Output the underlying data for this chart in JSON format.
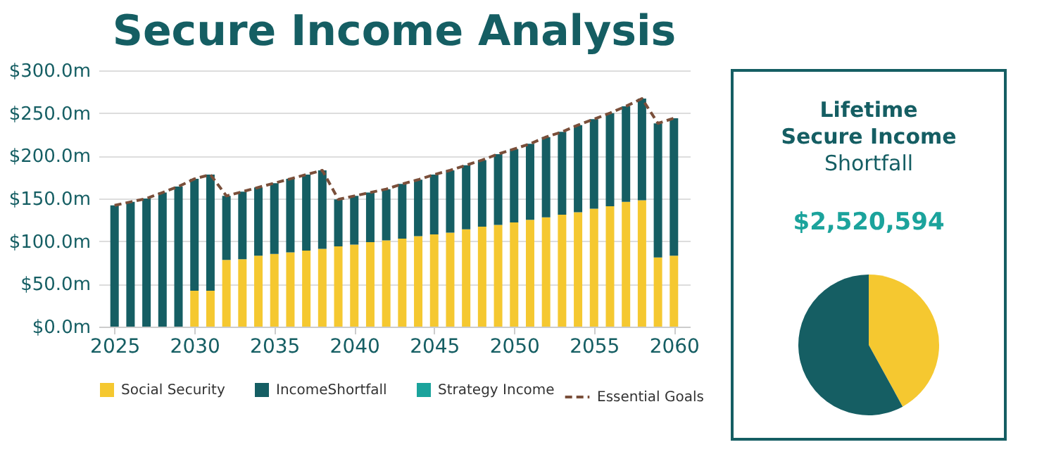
{
  "chart_data": [
    {
      "type": "bar",
      "title": "Secure Income Analysis",
      "stacked": true,
      "x": [
        2025,
        2026,
        2027,
        2028,
        2029,
        2030,
        2031,
        2032,
        2033,
        2034,
        2035,
        2036,
        2037,
        2038,
        2039,
        2040,
        2041,
        2042,
        2043,
        2044,
        2045,
        2046,
        2047,
        2048,
        2049,
        2050,
        2051,
        2052,
        2053,
        2054,
        2055,
        2056,
        2057,
        2058,
        2059,
        2060
      ],
      "series": [
        {
          "name": "Social Security",
          "color": "#f5c830",
          "values": [
            0,
            0,
            0,
            0,
            0,
            42,
            42,
            78,
            79,
            83,
            85,
            87,
            89,
            91,
            94,
            96,
            99,
            101,
            103,
            106,
            108,
            110,
            114,
            117,
            119,
            122,
            125,
            128,
            131,
            134,
            138,
            141,
            146,
            148,
            81,
            83
          ]
        },
        {
          "name": "IncomeShortfall",
          "color": "#155e63",
          "values": [
            142,
            146,
            150,
            157,
            164,
            131,
            136,
            75,
            79,
            80,
            83,
            86,
            89,
            92,
            55,
            57,
            58,
            60,
            64,
            66,
            70,
            73,
            75,
            78,
            83,
            86,
            89,
            94,
            97,
            102,
            105,
            109,
            112,
            119,
            157,
            161
          ]
        },
        {
          "name": "Strategy Income",
          "color": "#1ba39c",
          "values": [
            0,
            0,
            0,
            0,
            0,
            0,
            0,
            0,
            0,
            0,
            0,
            0,
            0,
            0,
            0,
            0,
            0,
            0,
            0,
            0,
            0,
            0,
            0,
            0,
            0,
            0,
            0,
            0,
            0,
            0,
            0,
            0,
            0,
            0,
            0,
            0
          ]
        },
        {
          "name": "Essential Goals",
          "type": "line",
          "line_style": "dashed",
          "color": "#7a4f3a",
          "values": [
            142,
            146,
            150,
            157,
            164,
            173,
            178,
            153,
            158,
            163,
            168,
            173,
            178,
            183,
            149,
            153,
            157,
            161,
            167,
            172,
            178,
            183,
            189,
            195,
            202,
            208,
            214,
            222,
            228,
            236,
            243,
            250,
            258,
            267,
            238,
            244
          ]
        }
      ],
      "xlim": [
        2024,
        2061
      ],
      "xticks": [
        2025,
        2030,
        2035,
        2040,
        2045,
        2050,
        2055,
        2060
      ],
      "ylim": [
        0,
        300
      ],
      "yticks": [
        {
          "value": 0,
          "label": "$0.0m"
        },
        {
          "value": 50,
          "label": "$50.0m"
        },
        {
          "value": 100,
          "label": "$100.0m"
        },
        {
          "value": 150,
          "label": "$150.0m"
        },
        {
          "value": 200,
          "label": "$200.0m"
        },
        {
          "value": 250,
          "label": "$250.0m"
        },
        {
          "value": 300,
          "label": "$300.0m"
        }
      ],
      "grid": "y",
      "legend": "bottom"
    },
    {
      "type": "pie",
      "title": "Lifetime Secure Income",
      "subtitle": "Shortfall",
      "annotations": [
        "$2,520,594"
      ],
      "categories": [
        null,
        null
      ],
      "values": [
        42,
        58
      ],
      "colors": [
        "#f5c830",
        "#155e63"
      ]
    }
  ]
}
